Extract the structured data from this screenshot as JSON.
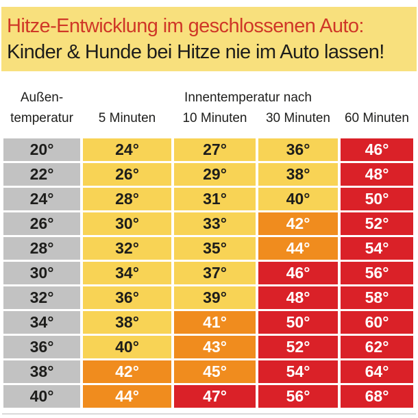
{
  "banner": {
    "title": "Hitze-Entwicklung im geschlossenen Auto:",
    "subtitle": "Kinder & Hunde bei Hitze nie im Auto lassen!"
  },
  "table": {
    "outside_header_line1": "Außen-",
    "outside_header_line2": "temperatur",
    "group_header": "Innentemperatur nach",
    "minute_headers": [
      "5 Minuten",
      "10 Minuten",
      "30 Minuten",
      "60 Minuten"
    ],
    "rows": [
      {
        "outside": "20°",
        "cells": [
          {
            "value": "24°",
            "level": "yellow"
          },
          {
            "value": "27°",
            "level": "yellow"
          },
          {
            "value": "36°",
            "level": "yellow"
          },
          {
            "value": "46°",
            "level": "red"
          }
        ]
      },
      {
        "outside": "22°",
        "cells": [
          {
            "value": "26°",
            "level": "yellow"
          },
          {
            "value": "29°",
            "level": "yellow"
          },
          {
            "value": "38°",
            "level": "yellow"
          },
          {
            "value": "48°",
            "level": "red"
          }
        ]
      },
      {
        "outside": "24°",
        "cells": [
          {
            "value": "28°",
            "level": "yellow"
          },
          {
            "value": "31°",
            "level": "yellow"
          },
          {
            "value": "40°",
            "level": "yellow"
          },
          {
            "value": "50°",
            "level": "red"
          }
        ]
      },
      {
        "outside": "26°",
        "cells": [
          {
            "value": "30°",
            "level": "yellow"
          },
          {
            "value": "33°",
            "level": "yellow"
          },
          {
            "value": "42°",
            "level": "orange"
          },
          {
            "value": "52°",
            "level": "red"
          }
        ]
      },
      {
        "outside": "28°",
        "cells": [
          {
            "value": "32°",
            "level": "yellow"
          },
          {
            "value": "35°",
            "level": "yellow"
          },
          {
            "value": "44°",
            "level": "orange"
          },
          {
            "value": "54°",
            "level": "red"
          }
        ]
      },
      {
        "outside": "30°",
        "cells": [
          {
            "value": "34°",
            "level": "yellow"
          },
          {
            "value": "37°",
            "level": "yellow"
          },
          {
            "value": "46°",
            "level": "red"
          },
          {
            "value": "56°",
            "level": "red"
          }
        ]
      },
      {
        "outside": "32°",
        "cells": [
          {
            "value": "36°",
            "level": "yellow"
          },
          {
            "value": "39°",
            "level": "yellow"
          },
          {
            "value": "48°",
            "level": "red"
          },
          {
            "value": "58°",
            "level": "red"
          }
        ]
      },
      {
        "outside": "34°",
        "cells": [
          {
            "value": "38°",
            "level": "yellow"
          },
          {
            "value": "41°",
            "level": "orange"
          },
          {
            "value": "50°",
            "level": "red"
          },
          {
            "value": "60°",
            "level": "red"
          }
        ]
      },
      {
        "outside": "36°",
        "cells": [
          {
            "value": "40°",
            "level": "yellow"
          },
          {
            "value": "43°",
            "level": "orange"
          },
          {
            "value": "52°",
            "level": "red"
          },
          {
            "value": "62°",
            "level": "red"
          }
        ]
      },
      {
        "outside": "38°",
        "cells": [
          {
            "value": "42°",
            "level": "orange"
          },
          {
            "value": "45°",
            "level": "orange"
          },
          {
            "value": "54°",
            "level": "red"
          },
          {
            "value": "64°",
            "level": "red"
          }
        ]
      },
      {
        "outside": "40°",
        "cells": [
          {
            "value": "44°",
            "level": "orange"
          },
          {
            "value": "47°",
            "level": "red"
          },
          {
            "value": "56°",
            "level": "red"
          },
          {
            "value": "68°",
            "level": "red"
          }
        ]
      }
    ]
  },
  "colors": {
    "banner_bg": "#f8e07d",
    "title_red": "#cf3727",
    "dark_text": "#1d1d1b",
    "white_text": "#ffffff",
    "outside_gray": "#c2c2c2",
    "yellow": "#f8d355",
    "orange": "#f08c1e",
    "red": "#da2128"
  },
  "chart_data": {
    "type": "table",
    "title": "Hitze-Entwicklung im geschlossenen Auto:",
    "subtitle": "Kinder & Hunde bei Hitze nie im Auto lassen!",
    "row_header": "Außentemperatur",
    "column_group_header": "Innentemperatur nach",
    "categories": [
      20,
      22,
      24,
      26,
      28,
      30,
      32,
      34,
      36,
      38,
      40
    ],
    "series": [
      {
        "name": "5 Minuten",
        "values": [
          24,
          26,
          28,
          30,
          32,
          34,
          36,
          38,
          40,
          42,
          44
        ]
      },
      {
        "name": "10 Minuten",
        "values": [
          27,
          29,
          31,
          33,
          35,
          37,
          39,
          41,
          43,
          45,
          47
        ]
      },
      {
        "name": "30 Minuten",
        "values": [
          36,
          38,
          40,
          42,
          44,
          46,
          48,
          50,
          52,
          54,
          56
        ]
      },
      {
        "name": "60 Minuten",
        "values": [
          46,
          48,
          50,
          52,
          54,
          56,
          58,
          60,
          62,
          64,
          68
        ]
      }
    ],
    "color_coding": {
      "yellow_max": 40,
      "orange_range": [
        41,
        45
      ],
      "red_min": 46
    },
    "unit": "°C"
  }
}
